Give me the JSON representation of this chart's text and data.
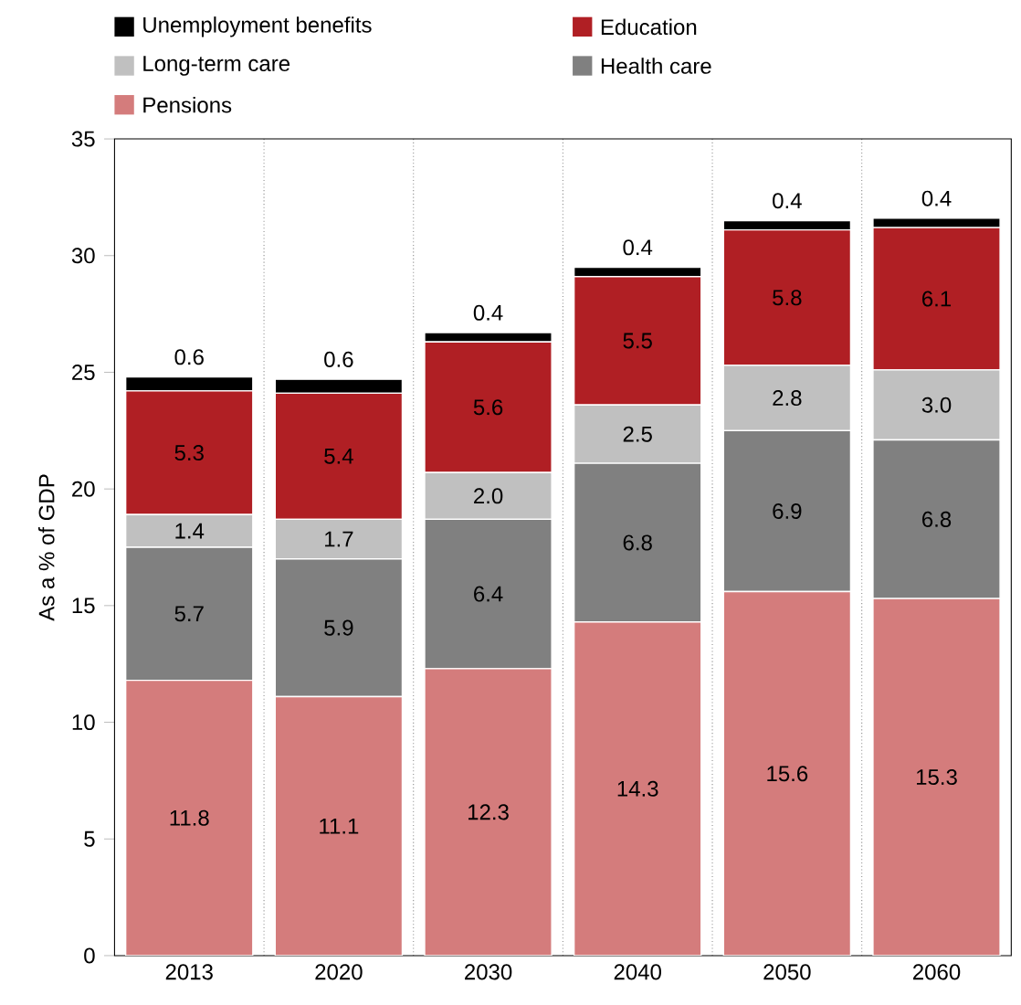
{
  "chart_data": {
    "type": "bar",
    "stacked": true,
    "ylabel": "As a % of GDP",
    "categories": [
      "2013",
      "2020",
      "2030",
      "2040",
      "2050",
      "2060"
    ],
    "ylim": [
      0,
      35
    ],
    "yticks": [
      0,
      5,
      10,
      15,
      20,
      25,
      30,
      35
    ],
    "grid": "x",
    "legend": "top",
    "data_labels": true,
    "series": [
      {
        "name": "Pensions",
        "color": "#d47c7c",
        "values": [
          11.8,
          11.1,
          12.3,
          14.3,
          15.6,
          15.3
        ]
      },
      {
        "name": "Health care",
        "color": "#808080",
        "values": [
          5.7,
          5.9,
          6.4,
          6.8,
          6.9,
          6.8
        ]
      },
      {
        "name": "Long-term care",
        "color": "#c0c0c0",
        "values": [
          1.4,
          1.7,
          2.0,
          2.5,
          2.8,
          3.0
        ],
        "value_labels": [
          "1.4",
          "1.7",
          "2.0",
          "2.5",
          "2.8",
          "3.0"
        ]
      },
      {
        "name": "Education",
        "color": "#b01f24",
        "values": [
          5.3,
          5.4,
          5.6,
          5.5,
          5.8,
          6.1
        ]
      },
      {
        "name": "Unemployment benefits",
        "color": "#000000",
        "values": [
          0.6,
          0.6,
          0.4,
          0.4,
          0.4,
          0.4
        ]
      }
    ]
  }
}
